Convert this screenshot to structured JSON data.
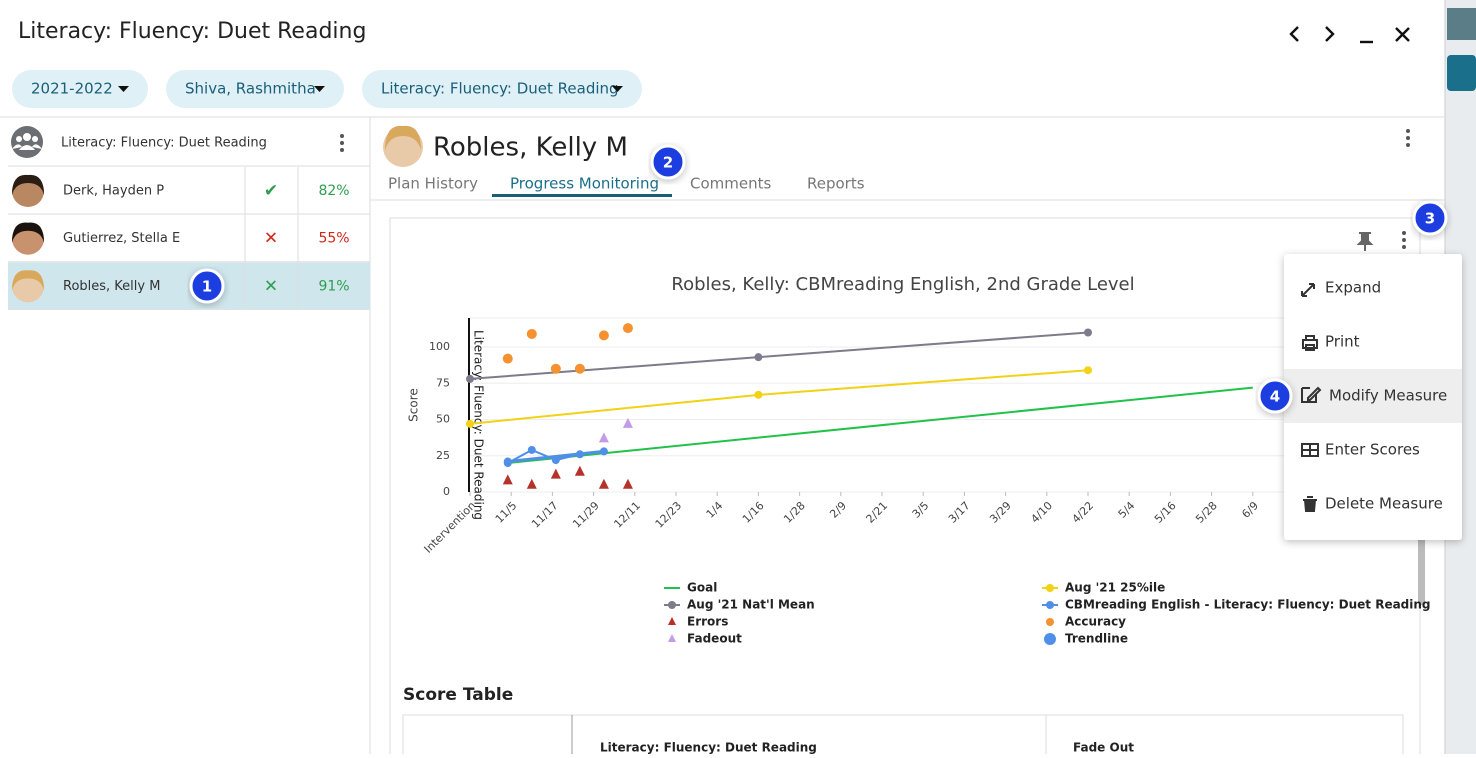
{
  "header": {
    "title": "Literacy: Fluency: Duet Reading"
  },
  "filters": [
    "2021-2022",
    "Shiva, Rashmitha",
    "Literacy: Fluency: Duet Reading"
  ],
  "group": {
    "label": "Literacy: Fluency: Duet Reading"
  },
  "students": [
    {
      "name": "Derk, Hayden P",
      "mark": "✔",
      "percent": "82%",
      "color": "#2e9e4f"
    },
    {
      "name": "Gutierrez, Stella E",
      "mark": "✕",
      "percent": "55%",
      "color": "#d0281e"
    },
    {
      "name": "Robles, Kelly M",
      "mark": "✕",
      "percent": "91%",
      "color": "#2e9e4f"
    }
  ],
  "profile": {
    "name": "Robles, Kelly M"
  },
  "tabs": [
    "Plan History",
    "Progress Monitoring",
    "Comments",
    "Reports"
  ],
  "callouts": [
    "1",
    "2",
    "3",
    "4"
  ],
  "chart": {
    "type": "line",
    "title": "Robles, Kelly: CBMreading English, 2nd Grade Level",
    "y_label": "Score",
    "annotation": "Literacy: Fluency: Duet Reading",
    "xticks": [
      "Intervention",
      "11/5",
      "11/17",
      "11/29",
      "12/11",
      "12/23",
      "1/4",
      "1/16",
      "1/28",
      "2/9",
      "2/21",
      "3/5",
      "3/17",
      "3/29",
      "4/10",
      "4/22",
      "5/4",
      "5/16",
      "5/28",
      "6/9"
    ],
    "ylim": [
      0,
      120
    ],
    "yticks": [
      0,
      25,
      50,
      75,
      100
    ],
    "grid": true,
    "series": [
      {
        "name": "Goal",
        "color": "#21c24a",
        "type": "line",
        "x": [
          "11/4",
          "6/9"
        ],
        "values": [
          20,
          72
        ]
      },
      {
        "name": "Aug '21 25%ile",
        "color": "#f2d215",
        "type": "line",
        "marker": "circle",
        "x": [
          "Intervention",
          "1/16",
          "4/22"
        ],
        "values": [
          47,
          67,
          84
        ]
      },
      {
        "name": "Aug '21 Nat'l Mean",
        "color": "#7e7b8a",
        "type": "line",
        "marker": "circle",
        "x": [
          "Intervention",
          "1/16",
          "4/22"
        ],
        "values": [
          78,
          93,
          110
        ]
      },
      {
        "name": "CBMreading English - Literacy: Fluency: Duet Reading",
        "color": "#4f8fe8",
        "type": "line",
        "marker": "circle",
        "x": [
          "11/4",
          "11/11",
          "11/18",
          "11/25"
        ],
        "values": [
          20,
          29,
          22,
          26
        ]
      },
      {
        "name": "Errors",
        "color": "#b5322a",
        "type": "scatter",
        "marker": "triangle",
        "x": [
          "11/4",
          "11/11",
          "11/18",
          "11/25",
          "12/2",
          "12/9"
        ],
        "values": [
          8,
          5,
          12,
          14,
          5,
          5
        ]
      },
      {
        "name": "Accuracy",
        "color": "#f5922f",
        "type": "scatter",
        "marker": "circle",
        "x": [
          "11/4",
          "11/11",
          "11/18",
          "11/25",
          "12/2",
          "12/9"
        ],
        "values": [
          92,
          109,
          85,
          85,
          108,
          113
        ]
      },
      {
        "name": "Fadeout",
        "color": "#c49be8",
        "type": "scatter",
        "marker": "triangle",
        "x": [
          "12/2",
          "12/9"
        ],
        "values": [
          37,
          47
        ]
      },
      {
        "name": "Trendline",
        "color": "#4f8fe8",
        "type": "line",
        "marker": "circle",
        "x": [
          "11/4",
          "12/2"
        ],
        "values": [
          21,
          28
        ]
      }
    ]
  },
  "menu": [
    "Expand",
    "Print",
    "Modify Measure",
    "Enter Scores",
    "Delete Measure"
  ],
  "score_table": {
    "title": "Score Table",
    "columns": [
      "Literacy: Fluency: Duet Reading",
      "Fade Out"
    ]
  }
}
